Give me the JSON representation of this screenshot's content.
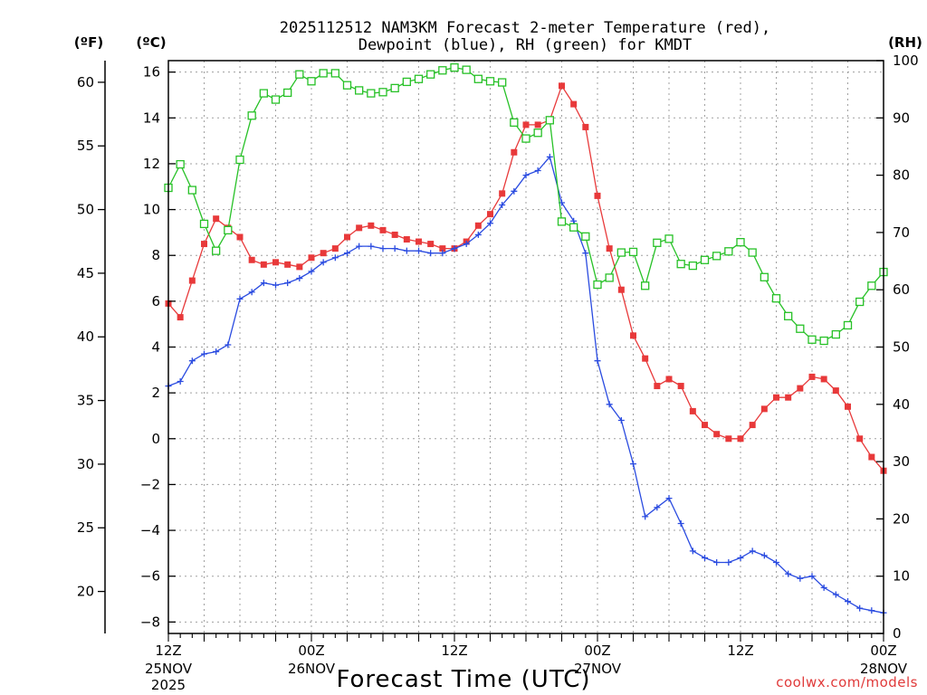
{
  "chart_data": {
    "type": "line",
    "title_line1": "2025112512 NAM3KM Forecast 2-meter Temperature (red),",
    "title_line2": "Dewpoint (blue), RH (green) for KMDT",
    "unit_f": "(ºF)",
    "unit_c": "(ºC)",
    "unit_rh": "(RH)",
    "xlabel": "Forecast Time (UTC)",
    "credit": "coolwx.com/models",
    "hours": [
      0,
      1,
      2,
      3,
      4,
      5,
      6,
      7,
      8,
      9,
      10,
      11,
      12,
      13,
      14,
      15,
      16,
      17,
      18,
      19,
      20,
      21,
      22,
      23,
      24,
      25,
      26,
      27,
      28,
      29,
      30,
      31,
      32,
      33,
      34,
      35,
      36,
      37,
      38,
      39,
      40,
      41,
      42,
      43,
      44,
      45,
      46,
      47,
      48,
      49,
      50,
      51,
      52,
      53,
      54,
      55,
      56,
      57,
      58,
      59,
      60
    ],
    "x_range": [
      0,
      60
    ],
    "ylim_c": [
      -8.5,
      16.5
    ],
    "ylim_rh": [
      0,
      100
    ],
    "ylim_f": [
      16.7,
      61.7
    ],
    "c_ticks": [
      16,
      14,
      12,
      10,
      8,
      6,
      4,
      2,
      0,
      -2,
      -4,
      -6,
      -8
    ],
    "f_ticks": [
      60,
      55,
      50,
      45,
      40,
      35,
      30,
      25,
      20
    ],
    "rh_ticks": [
      100,
      90,
      80,
      70,
      60,
      50,
      40,
      30,
      20,
      10,
      0
    ],
    "x_ticks": [
      {
        "hour": 0,
        "label": "12Z",
        "date": "25NOV",
        "year": "2025"
      },
      {
        "hour": 12,
        "label": "00Z",
        "date": "26NOV",
        "year": ""
      },
      {
        "hour": 24,
        "label": "12Z",
        "date": "",
        "year": ""
      },
      {
        "hour": 36,
        "label": "00Z",
        "date": "27NOV",
        "year": ""
      },
      {
        "hour": 48,
        "label": "12Z",
        "date": "",
        "year": ""
      },
      {
        "hour": 60,
        "label": "00Z",
        "date": "28NOV",
        "year": ""
      }
    ],
    "series": [
      {
        "name": "Temperature",
        "units": "C",
        "color": "#e8393a",
        "marker": "filled-square",
        "values": [
          5.9,
          5.3,
          6.9,
          8.5,
          9.6,
          9.2,
          8.8,
          7.8,
          7.6,
          7.7,
          7.6,
          7.5,
          7.9,
          8.1,
          8.3,
          8.8,
          9.2,
          9.3,
          9.1,
          8.9,
          8.7,
          8.6,
          8.5,
          8.3,
          8.3,
          8.6,
          9.3,
          9.8,
          10.7,
          12.5,
          13.7,
          13.7,
          13.9,
          15.4,
          14.6,
          13.6,
          10.6,
          8.3,
          6.5,
          4.5,
          3.5,
          2.3,
          2.6,
          2.3,
          1.2,
          0.6,
          0.2,
          0,
          0,
          0.6,
          1.3,
          1.8,
          1.8,
          2.2,
          2.7,
          2.6,
          2.1,
          1.4,
          0,
          -0.8,
          -1.4
        ]
      },
      {
        "name": "Dewpoint",
        "units": "C",
        "color": "#2a4be0",
        "marker": "plus",
        "values": [
          2.3,
          2.5,
          3.4,
          3.7,
          3.8,
          4.1,
          6.1,
          6.4,
          6.8,
          6.7,
          6.8,
          7.0,
          7.3,
          7.7,
          7.9,
          8.1,
          8.4,
          8.4,
          8.3,
          8.3,
          8.2,
          8.2,
          8.1,
          8.1,
          8.3,
          8.5,
          8.9,
          9.4,
          10.2,
          10.8,
          11.5,
          11.7,
          12.3,
          10.3,
          9.5,
          8.1,
          3.4,
          1.5,
          0.8,
          -1.1,
          -3.4,
          -3.0,
          -2.6,
          -3.7,
          -4.9,
          -5.2,
          -5.4,
          -5.4,
          -5.2,
          -4.9,
          -5.1,
          -5.4,
          -5.9,
          -6.1,
          -6.0,
          -6.5,
          -6.8,
          -7.1,
          -7.4,
          -7.5,
          -7.6
        ]
      },
      {
        "name": "RH",
        "units": "%",
        "color": "#27c127",
        "marker": "open-square",
        "values": [
          77.8,
          81.9,
          77.4,
          71.5,
          66.8,
          70.4,
          82.7,
          90.4,
          94.3,
          93.2,
          94.4,
          97.6,
          96.4,
          97.8,
          97.8,
          95.7,
          94.8,
          94.3,
          94.5,
          95.2,
          96.3,
          96.8,
          97.6,
          98.3,
          98.8,
          98.4,
          96.8,
          96.4,
          96.2,
          89.2,
          86.4,
          87.4,
          89.6,
          71.9,
          70.9,
          69.3,
          60.9,
          62.1,
          66.5,
          66.6,
          60.7,
          68.2,
          68.9,
          64.5,
          64.2,
          65.2,
          65.9,
          66.7,
          68.3,
          66.5,
          62.2,
          58.5,
          55.4,
          53.2,
          51.3,
          51.1,
          52.2,
          53.8,
          57.9,
          60.7,
          63.1
        ]
      }
    ]
  }
}
